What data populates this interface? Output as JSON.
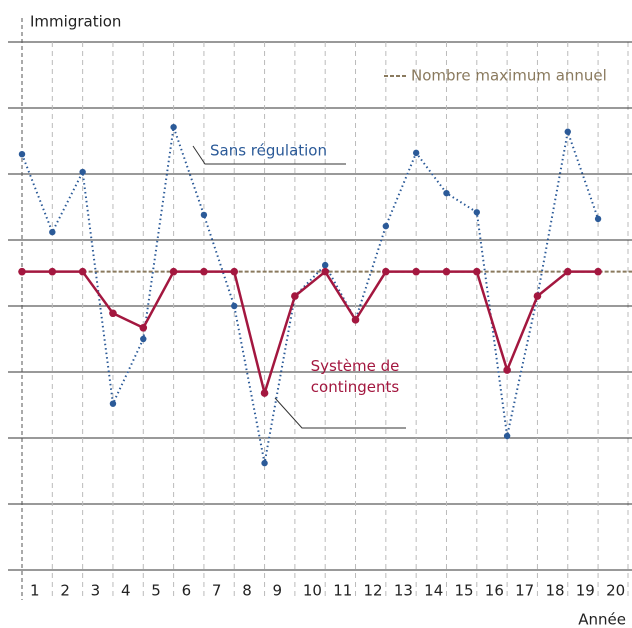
{
  "chart_data": {
    "type": "line",
    "title": "Immigration",
    "x_label": "Année",
    "categories": [
      "1",
      "2",
      "3",
      "4",
      "5",
      "6",
      "7",
      "8",
      "9",
      "10",
      "11",
      "12",
      "13",
      "14",
      "15",
      "16",
      "17",
      "18",
      "19",
      "20"
    ],
    "series": [
      {
        "name": "Sans régulation",
        "color": "#2b5a98",
        "style": "dotted",
        "values": [
          6.3,
          5.12,
          6.03,
          2.52,
          3.5,
          6.71,
          5.38,
          4.0,
          1.62,
          4.15,
          4.62,
          3.79,
          5.21,
          6.32,
          5.71,
          5.42,
          2.03,
          4.15,
          6.64,
          5.32
        ]
      },
      {
        "name": "Système de contingents",
        "color": "#a3173f",
        "style": "solid",
        "values": [
          4.52,
          4.52,
          4.52,
          3.89,
          3.67,
          4.52,
          4.52,
          4.52,
          2.68,
          4.15,
          4.52,
          3.79,
          4.52,
          4.52,
          4.52,
          4.52,
          3.03,
          4.15,
          4.52,
          4.52
        ]
      }
    ],
    "reference_line": {
      "name": "Nombre maximum annuel",
      "value": 4.52,
      "color": "#8a7a5e"
    },
    "ylim": [
      0,
      8
    ],
    "yticks": [
      0,
      1,
      2,
      3,
      4,
      5,
      6,
      7,
      8
    ],
    "grid": true
  }
}
